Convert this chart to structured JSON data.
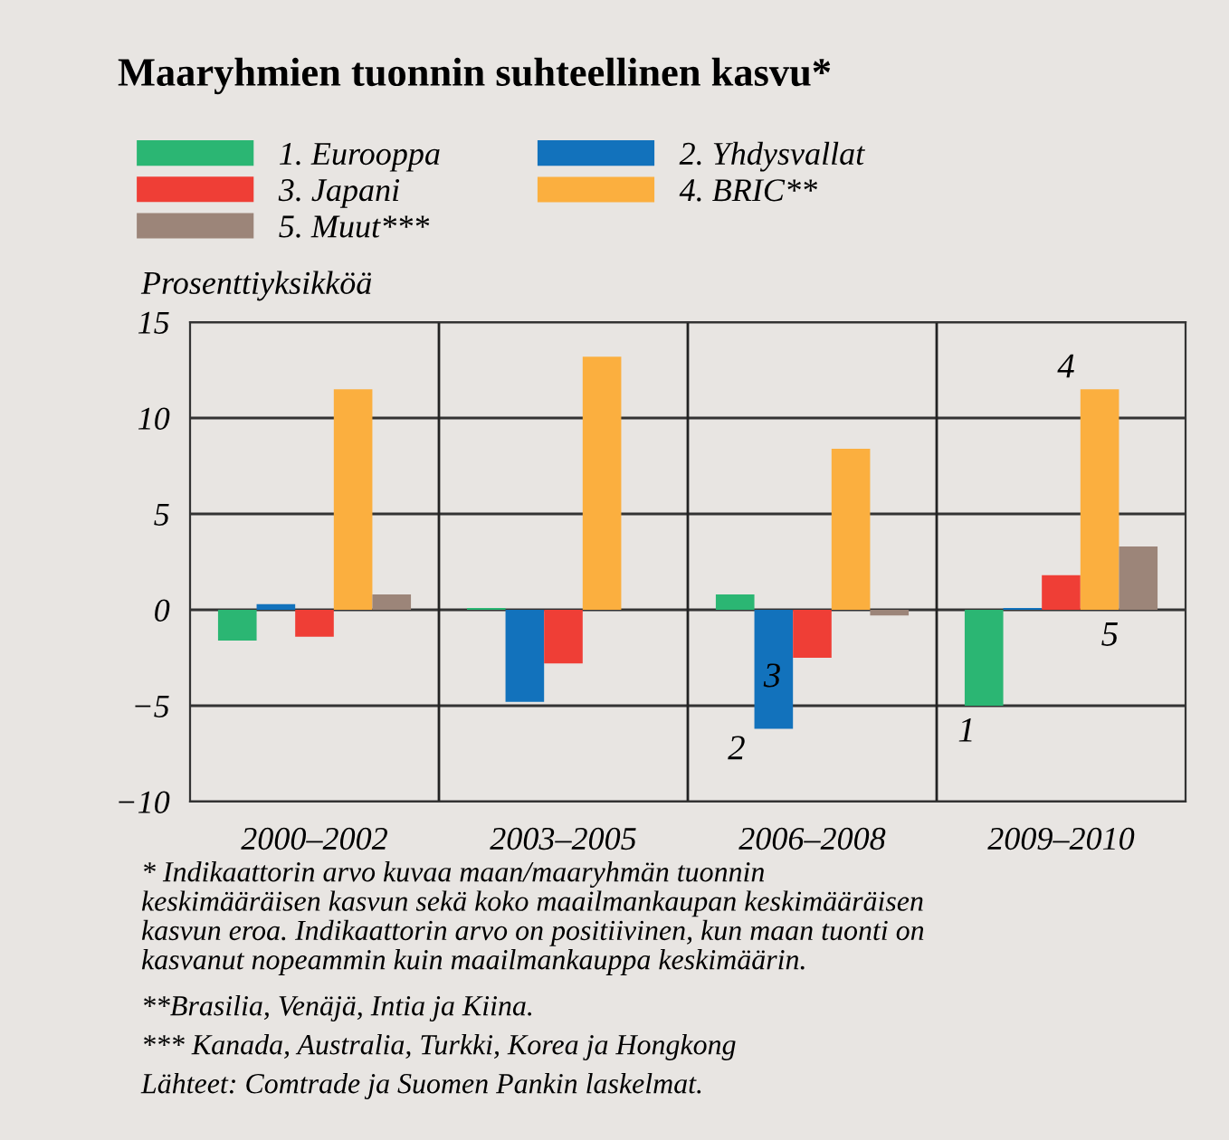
{
  "chart_data": {
    "type": "bar",
    "title": "Maaryhmien tuonnin suhteellinen kasvu*",
    "ylabel": "Prosenttiyksikköä",
    "categories": [
      "2000–2002",
      "2003–2005",
      "2006–2008",
      "2009–2010"
    ],
    "series": [
      {
        "name": "1. Eurooppa",
        "color": "#2bb673",
        "values": [
          -1.6,
          0.1,
          0.8,
          -5.0
        ]
      },
      {
        "name": "2. Yhdysvallat",
        "color": "#1272bc",
        "values": [
          0.3,
          -4.8,
          -6.2,
          0.1
        ]
      },
      {
        "name": "3. Japani",
        "color": "#ef3e36",
        "values": [
          -1.4,
          -2.8,
          -2.5,
          1.8
        ]
      },
      {
        "name": "4. BRIC**",
        "color": "#fbaf3f",
        "values": [
          11.5,
          13.2,
          8.4,
          11.5
        ]
      },
      {
        "name": "5. Muut***",
        "color": "#9c8579",
        "values": [
          0.8,
          0.0,
          -0.3,
          3.3
        ]
      }
    ],
    "ylim": [
      -10,
      15
    ],
    "yticks": [
      {
        "value": -10,
        "label": "−10"
      },
      {
        "value": -5,
        "label": "−5"
      },
      0,
      5,
      10,
      15
    ],
    "grid": true,
    "legend": "top left",
    "annotations": [
      "2",
      "3",
      "1",
      "4",
      "5",
      "* Indikaattorin arvo kuvaa maan/maaryhmän tuonnin\nkeskimääräisen kasvun sekä koko maailmankaupan keskimääräisen\nkasvun eroa. Indikaattorin arvo on positiivinen, kun maan tuonti on\nkasvanut nopeammin kuin maailmankauppa keskimäärin.",
      "**Brasilia, Venäjä, Intia ja Kiina.",
      "*** Kanada, Australia, Turkki, Korea ja Hongkong",
      "Lähteet: Comtrade ja Suomen Pankin laskelmat."
    ]
  }
}
